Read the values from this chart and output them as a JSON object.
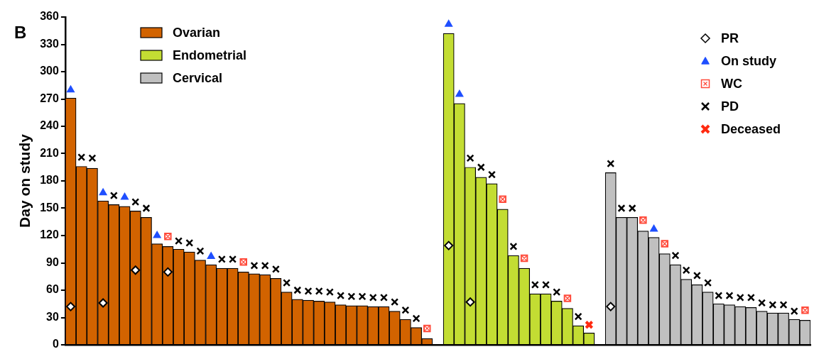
{
  "chart_data": {
    "type": "bar",
    "ylabel": "Day on study",
    "annotations": [
      "B"
    ],
    "categories": [
      null,
      null,
      null,
      null,
      null,
      null,
      null,
      null,
      null,
      null,
      null,
      null,
      null,
      null,
      null,
      null,
      null,
      null,
      null,
      null,
      null,
      null,
      null,
      null,
      null,
      null,
      null,
      null,
      null,
      null,
      null,
      null,
      null,
      null,
      null,
      null,
      null,
      null,
      null,
      null,
      null,
      null,
      null,
      null,
      null,
      null,
      null,
      null,
      null,
      null,
      null,
      null,
      null,
      null,
      null,
      null,
      null,
      null,
      null,
      null,
      null,
      null,
      null,
      null,
      null,
      null,
      null,
      null,
      null
    ],
    "ylim": [
      0,
      360
    ],
    "yticks": [
      0,
      30,
      60,
      90,
      120,
      150,
      180,
      210,
      240,
      270,
      300,
      330,
      360
    ],
    "grid": false,
    "legend": "top",
    "series": [
      {
        "name": "Ovarian",
        "color": "#d26300",
        "values": [
          271,
          196,
          194,
          158,
          154,
          152,
          147,
          140,
          111,
          108,
          105,
          102,
          93,
          88,
          84,
          84,
          80,
          78,
          77,
          73,
          58,
          50,
          49,
          48,
          47,
          44,
          43,
          43,
          42,
          42,
          37,
          28,
          19,
          7,
          null,
          null,
          null,
          null,
          null,
          null,
          null,
          null,
          null,
          null,
          null,
          null,
          null,
          null,
          null,
          null,
          null,
          null,
          null,
          null,
          null,
          null,
          null,
          null,
          null,
          null,
          null,
          null,
          null,
          null,
          null,
          null,
          null,
          null,
          null
        ]
      },
      {
        "name": "Endometrial",
        "color": "#c3dd33",
        "values": [
          null,
          null,
          null,
          null,
          null,
          null,
          null,
          null,
          null,
          null,
          null,
          null,
          null,
          null,
          null,
          null,
          null,
          null,
          null,
          null,
          null,
          null,
          null,
          null,
          null,
          null,
          null,
          null,
          null,
          null,
          null,
          null,
          null,
          null,
          null,
          342,
          265,
          195,
          184,
          177,
          149,
          98,
          84,
          56,
          56,
          48,
          40,
          21,
          13,
          null,
          null,
          null,
          null,
          null,
          null,
          null,
          null,
          null,
          null,
          null,
          null,
          null,
          null,
          null,
          null,
          null,
          null,
          null,
          null
        ]
      },
      {
        "name": "Cervical",
        "color": "#c0c0c0",
        "values": [
          null,
          null,
          null,
          null,
          null,
          null,
          null,
          null,
          null,
          null,
          null,
          null,
          null,
          null,
          null,
          null,
          null,
          null,
          null,
          null,
          null,
          null,
          null,
          null,
          null,
          null,
          null,
          null,
          null,
          null,
          null,
          null,
          null,
          null,
          null,
          null,
          null,
          null,
          null,
          null,
          null,
          null,
          null,
          null,
          null,
          null,
          null,
          null,
          null,
          null,
          189,
          140,
          140,
          125,
          118,
          100,
          88,
          72,
          66,
          58,
          45,
          44,
          42,
          41,
          37,
          35,
          35,
          28,
          27
        ]
      },
      {
        "name": "PR",
        "type": "scatter",
        "marker": "diamond",
        "color": "#ffffff",
        "values": [
          42,
          null,
          null,
          46,
          null,
          null,
          82,
          null,
          null,
          80,
          null,
          null,
          null,
          null,
          null,
          null,
          null,
          null,
          null,
          null,
          null,
          null,
          null,
          null,
          null,
          null,
          null,
          null,
          null,
          null,
          null,
          null,
          null,
          null,
          null,
          109,
          null,
          47,
          null,
          null,
          null,
          null,
          null,
          null,
          null,
          null,
          null,
          null,
          null,
          null,
          42,
          null,
          null,
          null,
          null,
          null,
          null,
          null,
          null,
          null,
          null,
          null,
          null,
          null,
          null,
          null,
          null,
          null,
          null
        ]
      },
      {
        "name": "On study",
        "type": "scatter",
        "marker": "triangle",
        "color": "#1f4fff",
        "values": [
          280,
          null,
          null,
          167,
          null,
          162,
          null,
          null,
          120,
          null,
          null,
          null,
          null,
          97,
          null,
          null,
          null,
          null,
          null,
          null,
          null,
          null,
          null,
          null,
          null,
          null,
          null,
          null,
          null,
          null,
          null,
          null,
          null,
          null,
          null,
          352,
          275,
          null,
          null,
          null,
          null,
          null,
          null,
          null,
          null,
          null,
          null,
          null,
          null,
          null,
          null,
          null,
          null,
          null,
          127,
          null,
          null,
          null,
          null,
          null,
          null,
          null,
          null,
          null,
          null,
          null,
          null,
          null,
          null
        ]
      },
      {
        "name": "WC",
        "type": "scatter",
        "marker": "square",
        "color": "#ff4a3a",
        "values": [
          null,
          null,
          null,
          null,
          null,
          null,
          null,
          null,
          null,
          119,
          null,
          null,
          null,
          null,
          null,
          null,
          91,
          null,
          null,
          null,
          null,
          null,
          null,
          null,
          null,
          null,
          null,
          null,
          null,
          null,
          null,
          null,
          null,
          18,
          null,
          null,
          null,
          null,
          null,
          null,
          160,
          null,
          95,
          null,
          null,
          null,
          51,
          null,
          null,
          null,
          null,
          null,
          null,
          137,
          null,
          111,
          null,
          null,
          null,
          null,
          null,
          null,
          null,
          null,
          null,
          null,
          null,
          null,
          38
        ]
      },
      {
        "name": "PD",
        "type": "scatter",
        "marker": "cross",
        "color": "#000000",
        "values": [
          null,
          206,
          205,
          null,
          164,
          null,
          157,
          150,
          null,
          null,
          114,
          112,
          103,
          null,
          94,
          94,
          null,
          87,
          87,
          83,
          68,
          60,
          59,
          59,
          58,
          54,
          53,
          53,
          52,
          52,
          47,
          38,
          29,
          null,
          null,
          null,
          null,
          205,
          195,
          187,
          null,
          108,
          null,
          66,
          66,
          58,
          null,
          31,
          null,
          null,
          199,
          150,
          150,
          null,
          null,
          null,
          98,
          82,
          76,
          68,
          54,
          54,
          52,
          52,
          46,
          44,
          44,
          37,
          null
        ]
      },
      {
        "name": "Deceased",
        "type": "scatter",
        "marker": "cross",
        "color": "#ff2a10",
        "values": [
          null,
          null,
          null,
          null,
          null,
          null,
          null,
          null,
          null,
          null,
          null,
          null,
          null,
          null,
          null,
          null,
          null,
          null,
          null,
          null,
          null,
          null,
          null,
          null,
          null,
          null,
          null,
          null,
          null,
          null,
          null,
          null,
          null,
          null,
          null,
          null,
          null,
          null,
          null,
          null,
          null,
          null,
          null,
          null,
          null,
          null,
          null,
          null,
          22,
          null,
          null,
          null,
          null,
          null,
          null,
          null,
          null,
          null,
          null,
          null,
          null,
          null,
          null,
          null,
          null,
          null,
          null,
          null,
          null
        ]
      }
    ]
  }
}
